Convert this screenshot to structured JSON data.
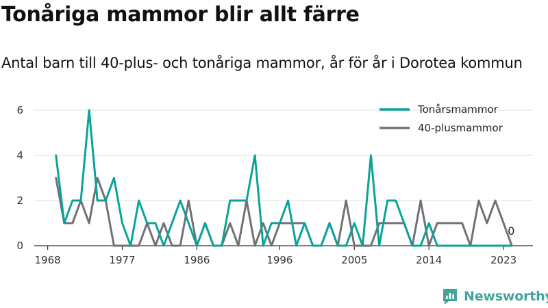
{
  "chart_data": {
    "type": "line",
    "title": "Tonåriga mammor blir allt färre",
    "subtitle": "Antal barn till 40-plus- och tonåriga mammor, år för år i Dorotea kommun",
    "x": [
      1969,
      1970,
      1971,
      1972,
      1973,
      1974,
      1975,
      1976,
      1977,
      1978,
      1979,
      1980,
      1981,
      1982,
      1983,
      1984,
      1985,
      1986,
      1987,
      1988,
      1989,
      1990,
      1991,
      1992,
      1993,
      1994,
      1995,
      1996,
      1997,
      1998,
      1999,
      2000,
      2001,
      2002,
      2003,
      2004,
      2005,
      2006,
      2007,
      2008,
      2009,
      2010,
      2011,
      2012,
      2013,
      2014,
      2015,
      2016,
      2017,
      2018,
      2019,
      2020,
      2021,
      2022,
      2023,
      2024
    ],
    "series": [
      {
        "name": "Tonårsmammor",
        "color": "#0aa39a",
        "values": [
          4,
          1,
          2,
          2,
          6,
          2,
          2,
          3,
          1,
          0,
          2,
          1,
          1,
          0,
          1,
          2,
          1,
          0,
          1,
          0,
          0,
          2,
          2,
          2,
          4,
          0,
          1,
          1,
          2,
          0,
          1,
          0,
          0,
          1,
          0,
          0,
          1,
          0,
          4,
          0,
          2,
          2,
          1,
          0,
          0,
          1,
          0,
          0,
          0,
          0,
          0,
          0,
          0,
          0,
          0,
          0
        ]
      },
      {
        "name": "40-plusmammor",
        "color": "#717077",
        "values": [
          3,
          1,
          1,
          2,
          1,
          3,
          2,
          0,
          0,
          0,
          0,
          1,
          0,
          1,
          0,
          0,
          2,
          0,
          1,
          0,
          0,
          1,
          0,
          2,
          0,
          1,
          0,
          1,
          1,
          1,
          1,
          0,
          0,
          1,
          0,
          2,
          0,
          0,
          0,
          1,
          1,
          1,
          1,
          0,
          2,
          0,
          1,
          1,
          1,
          1,
          0,
          2,
          1,
          2,
          1,
          0
        ]
      }
    ],
    "xticks": [
      1968,
      1977,
      1986,
      1996,
      2005,
      2014,
      2023
    ],
    "yticks": [
      0,
      2,
      4,
      6
    ],
    "ylim": [
      0,
      6
    ],
    "end_label": "0",
    "grid": true,
    "legend_position": "top-right"
  },
  "brand": {
    "name": "Newsworthy",
    "icon": "newsworthy-logo-icon",
    "color": "#43a49a"
  }
}
